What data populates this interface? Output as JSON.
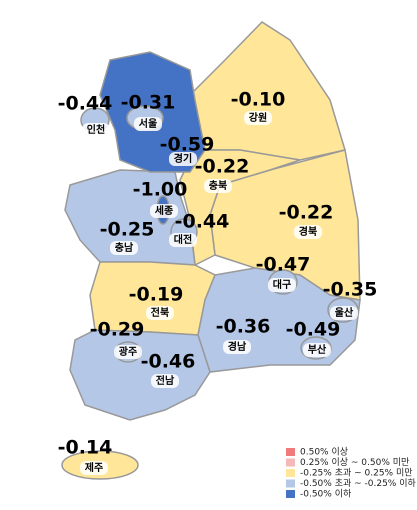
{
  "map": {
    "regions": [
      {
        "name": "인천",
        "value_label": "-0.44",
        "color": "#b4c7e7"
      },
      {
        "name": "서울",
        "value_label": "-0.31",
        "color": "#b4c7e7"
      },
      {
        "name": "경기",
        "value_label": "-0.59",
        "color": "#4472c4"
      },
      {
        "name": "강원",
        "value_label": "-0.10",
        "color": "#ffe699"
      },
      {
        "name": "충북",
        "value_label": "-0.22",
        "color": "#ffe699"
      },
      {
        "name": "세종",
        "value_label": "-1.00",
        "color": "#4472c4"
      },
      {
        "name": "대전",
        "value_label": "-0.44",
        "color": "#b4c7e7"
      },
      {
        "name": "충남",
        "value_label": "-0.25",
        "color": "#b4c7e7"
      },
      {
        "name": "경북",
        "value_label": "-0.22",
        "color": "#ffe699"
      },
      {
        "name": "대구",
        "value_label": "-0.47",
        "color": "#b4c7e7"
      },
      {
        "name": "울산",
        "value_label": "-0.35",
        "color": "#b4c7e7"
      },
      {
        "name": "전북",
        "value_label": "-0.19",
        "color": "#ffe699"
      },
      {
        "name": "경남",
        "value_label": "-0.36",
        "color": "#b4c7e7"
      },
      {
        "name": "부산",
        "value_label": "-0.49",
        "color": "#b4c7e7"
      },
      {
        "name": "광주",
        "value_label": "-0.29",
        "color": "#b4c7e7"
      },
      {
        "name": "전남",
        "value_label": "-0.46",
        "color": "#b4c7e7"
      },
      {
        "name": "제주",
        "value_label": "-0.14",
        "color": "#ffe699"
      }
    ],
    "legend": [
      {
        "label": "0.50% 이상",
        "color": "#f07b7b"
      },
      {
        "label": "0.25% 이상 ~ 0.50% 미만",
        "color": "#f4b8b8"
      },
      {
        "label": "-0.25% 초과 ~ 0.25% 미만",
        "color": "#ffe699"
      },
      {
        "label": "-0.50% 초과 ~ -0.25% 이하",
        "color": "#b4c7e7"
      },
      {
        "label": "-0.50% 이하",
        "color": "#4472c4"
      }
    ]
  }
}
